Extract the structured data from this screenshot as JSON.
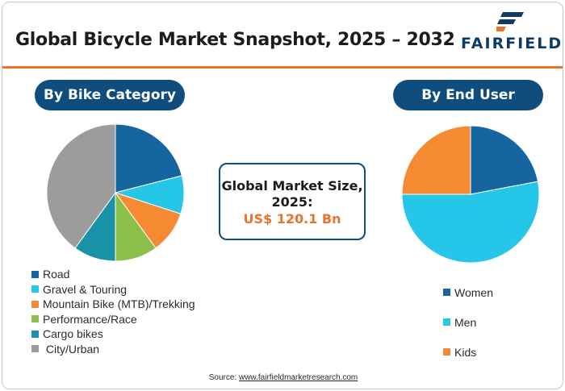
{
  "header": {
    "title": "Global Bicycle Market Snapshot, 2025 – 2032",
    "logo_text": "FAIRFIELD"
  },
  "colors": {
    "navy": "#0e4d7d",
    "accent": "#e8742a",
    "road": "#1565a0",
    "gravel": "#26c6e8",
    "mtb": "#f58a33",
    "performance": "#8cc04a",
    "cargo": "#1a93a8",
    "city": "#9c9c9c"
  },
  "left_panel": {
    "pill_label": "By Bike Category"
  },
  "right_panel": {
    "pill_label": "By End User"
  },
  "center": {
    "line1": "Global Market Size,",
    "line2": "2025:",
    "value": "US$ 120.1 Bn"
  },
  "source": {
    "prefix": "Source: ",
    "link": "www.fairfieldmarketresearch.com"
  },
  "chart_data": [
    {
      "type": "pie",
      "title": "By Bike Category",
      "categories": [
        "Road",
        "Gravel & Touring",
        "Mountain Bike (MTB)/Trekking",
        "Performance/Race",
        "Cargo bikes",
        " City/Urban"
      ],
      "values": [
        21,
        9,
        10,
        10,
        10,
        40
      ],
      "colors": [
        "#1565a0",
        "#26c6e8",
        "#f58a33",
        "#8cc04a",
        "#1a93a8",
        "#9c9c9c"
      ],
      "legend": "bottom-left"
    },
    {
      "type": "pie",
      "title": "By End User",
      "categories": [
        "Women",
        "Men",
        "Kids"
      ],
      "values": [
        22,
        53,
        25
      ],
      "colors": [
        "#1565a0",
        "#26c6e8",
        "#f58a33"
      ],
      "legend": "bottom-right"
    }
  ]
}
